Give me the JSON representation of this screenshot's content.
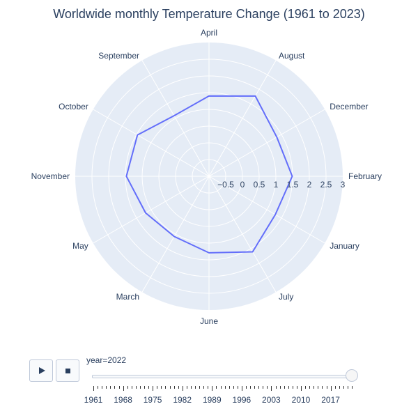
{
  "title": "Worldwide monthly Temperature Change (1961 to 2023)",
  "colors": {
    "polar_bg": "#e5ecf6",
    "grid": "#ffffff",
    "line": "#636efa",
    "text": "#2a3f5f"
  },
  "chart_data": {
    "type": "line",
    "subtype": "polar",
    "title": "Worldwide monthly Temperature Change (1961 to 2023)",
    "angular_categories": [
      "February",
      "December",
      "August",
      "April",
      "September",
      "October",
      "November",
      "May",
      "March",
      "June",
      "July",
      "January"
    ],
    "radial_range": [
      -1,
      3
    ],
    "radial_ticks": [
      "−0.5",
      "0",
      "0.5",
      "1",
      "1.5",
      "2",
      "2.5",
      "3"
    ],
    "radial_tick_values": [
      -0.5,
      0,
      0.5,
      1,
      1.5,
      2,
      2.5,
      3
    ],
    "series": [
      {
        "values": [
          1.49,
          1.34,
          1.77,
          1.4,
          1.09,
          1.47,
          1.47,
          1.19,
          1.08,
          1.29,
          1.61,
          1.29
        ]
      }
    ],
    "grid": true
  },
  "slider": {
    "label": "year=2022",
    "years": [
      1961,
      1968,
      1975,
      1982,
      1989,
      1996,
      2003,
      2010,
      2017
    ],
    "min_year": 1961,
    "max_year": 2022,
    "current_year": 2022
  },
  "controls": {
    "play_icon": "play-icon",
    "stop_icon": "stop-icon"
  }
}
